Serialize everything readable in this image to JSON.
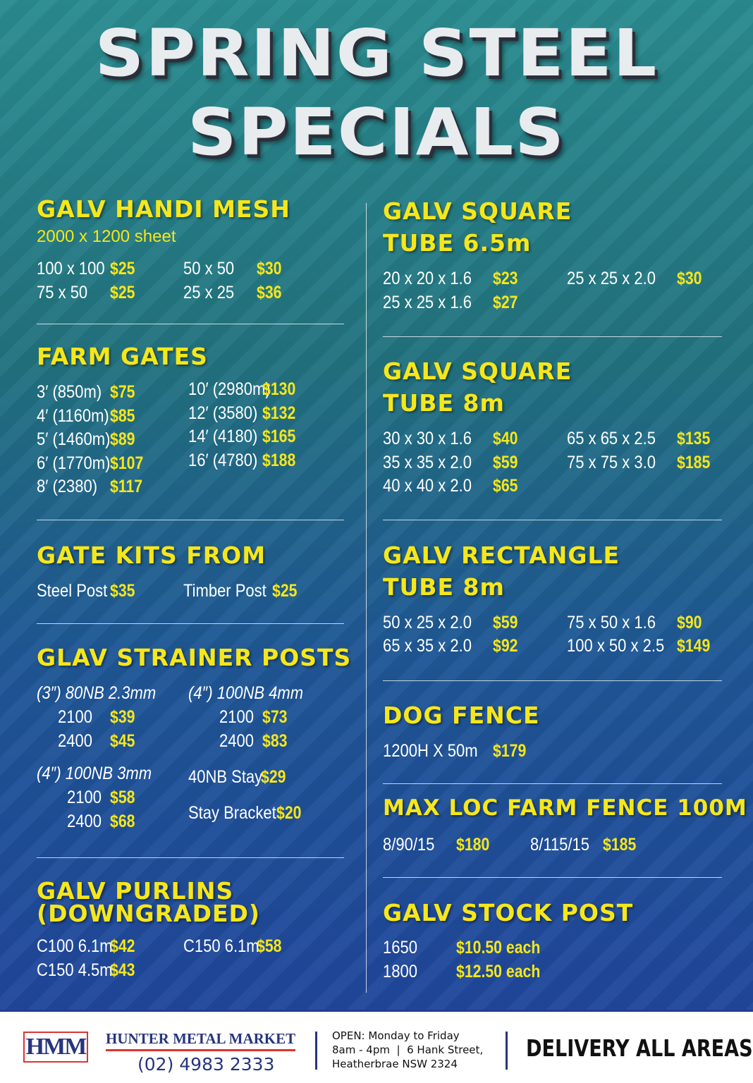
{
  "header": {
    "line1": "SPRING STEEL",
    "line2": "SPECIALS"
  },
  "colors": {
    "price": "#f6e71a",
    "title": "#f6e71a",
    "background_top": "#2a8c90",
    "background_bottom": "#20479c",
    "footer_brand": "#27357d",
    "logo_accent": "#dd3333"
  },
  "left": {
    "handi_mesh": {
      "title": "GALV HANDI MESH",
      "subtitle": "2000 x 1200 sheet",
      "items": [
        {
          "label": "100 x 100",
          "price": "$25"
        },
        {
          "label": "75 x 50",
          "price": "$25"
        },
        {
          "label": "50 x 50",
          "price": "$30"
        },
        {
          "label": "25 x 25",
          "price": "$36"
        }
      ]
    },
    "farm_gates": {
      "title": "FARM GATES",
      "items": [
        {
          "label": "3′ (850m)",
          "price": "$75"
        },
        {
          "label": "4′ (1160m)",
          "price": "$85"
        },
        {
          "label": "5′ (1460m)",
          "price": "$89"
        },
        {
          "label": "6′ (1770m)",
          "price": "$107"
        },
        {
          "label": "8′ (2380)",
          "price": "$117"
        },
        {
          "label": "10′ (2980m)",
          "price": "$130"
        },
        {
          "label": "12′ (3580)",
          "price": "$132"
        },
        {
          "label": "14′ (4180)",
          "price": "$165"
        },
        {
          "label": "16′ (4780)",
          "price": "$188"
        }
      ]
    },
    "gate_kits": {
      "title": "GATE KITS FROM",
      "items": [
        {
          "label": "Steel Post",
          "price": "$35"
        },
        {
          "label": "Timber Post",
          "price": "$25"
        }
      ]
    },
    "strainer_posts": {
      "title": "GLAV STRAINER POSTS",
      "groups": [
        {
          "heading": "(3″) 80NB 2.3mm",
          "items": [
            {
              "label": "2100",
              "price": "$39"
            },
            {
              "label": "2400",
              "price": "$45"
            }
          ]
        },
        {
          "heading": "(4″) 100NB 4mm",
          "items": [
            {
              "label": "2100",
              "price": "$73"
            },
            {
              "label": "2400",
              "price": "$83"
            }
          ]
        },
        {
          "heading": "(4″) 100NB 3mm",
          "items": [
            {
              "label": "2100",
              "price": "$58"
            },
            {
              "label": "2400",
              "price": "$68"
            }
          ]
        }
      ],
      "extras": [
        {
          "label": "40NB Stay",
          "price": "$29"
        },
        {
          "label": "Stay Bracket",
          "price": "$20"
        }
      ]
    },
    "purlins": {
      "title": "GALV PURLINS",
      "subtitle": "(DOWNGRADED)",
      "items": [
        {
          "label": "C100 6.1m",
          "price": "$42"
        },
        {
          "label": "C150 4.5m",
          "price": "$43"
        },
        {
          "label": "C150 6.1m",
          "price": "$58"
        }
      ]
    }
  },
  "right": {
    "square_65": {
      "title1": "GALV SQUARE",
      "title2": "TUBE 6.5m",
      "items": [
        {
          "label": "20 x 20 x 1.6",
          "price": "$23"
        },
        {
          "label": "25 x 25 x 1.6",
          "price": "$27"
        },
        {
          "label": "25 x 25 x 2.0",
          "price": "$30"
        }
      ]
    },
    "square_8": {
      "title1": "GALV SQUARE",
      "title2": "TUBE 8m",
      "items": [
        {
          "label": "30 x 30 x 1.6",
          "price": "$40"
        },
        {
          "label": "35 x 35 x 2.0",
          "price": "$59"
        },
        {
          "label": "40 x 40 x 2.0",
          "price": "$65"
        },
        {
          "label": "65 x 65 x 2.5",
          "price": "$135"
        },
        {
          "label": "75 x 75 x 3.0",
          "price": "$185"
        }
      ]
    },
    "rectangle_8": {
      "title1": "GALV RECTANGLE",
      "title2": "TUBE 8m",
      "items": [
        {
          "label": "50 x 25 x 2.0",
          "price": "$59"
        },
        {
          "label": "65 x 35 x 2.0",
          "price": "$92"
        },
        {
          "label": "75 x 50 x 1.6",
          "price": "$90"
        },
        {
          "label": "100 x 50 x 2.5",
          "price": "$149"
        }
      ]
    },
    "dog_fence": {
      "title": "DOG FENCE",
      "items": [
        {
          "label": "1200H X 50m",
          "price": "$179"
        }
      ]
    },
    "max_loc": {
      "title": "MAX LOC FARM FENCE 100M",
      "items": [
        {
          "label": "8/90/15",
          "price": "$180"
        },
        {
          "label": "8/115/15",
          "price": "$185"
        }
      ]
    },
    "stock_post": {
      "title": "GALV STOCK POST",
      "items": [
        {
          "label": "1650",
          "price": "$10.50 each"
        },
        {
          "label": "1800",
          "price": "$12.50 each"
        }
      ]
    }
  },
  "footer": {
    "logo": "HMM",
    "brand": "HUNTER METAL MARKET",
    "phone": "(02) 4983 2333",
    "hours_line1": "OPEN: Monday to Friday",
    "hours_line2": "8am - 4pm  |  6 Hank Street,",
    "hours_line3": "Heatherbrae NSW 2324",
    "delivery": "DELIVERY ALL AREAS"
  }
}
